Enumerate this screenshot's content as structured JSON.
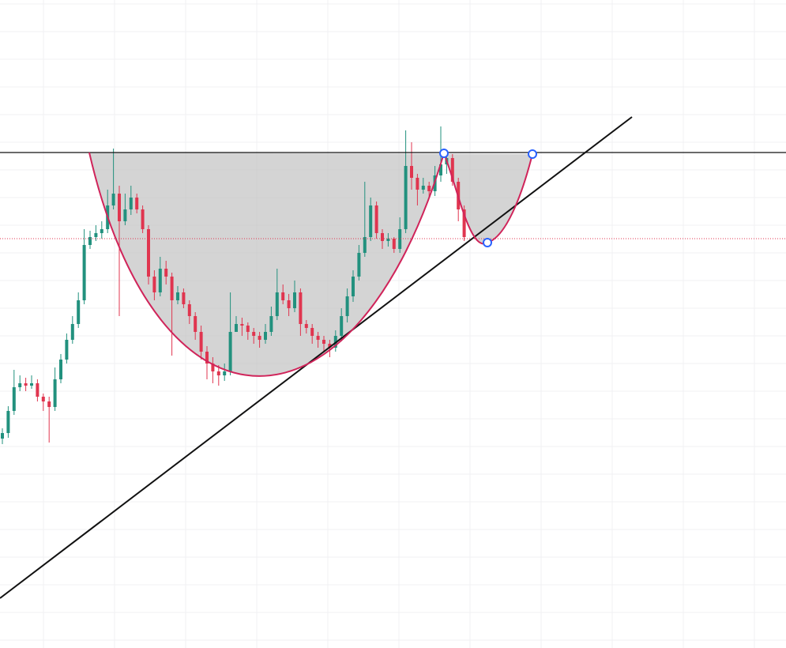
{
  "chart_data": {
    "type": "candlestick",
    "up_color": "#22917e",
    "down_color": "#e0354f",
    "ylim": [
      0,
      820
    ],
    "open": [
      265,
      272,
      300,
      330,
      335,
      332,
      335,
      318,
      312,
      305,
      340,
      365,
      390,
      410,
      440,
      510,
      520,
      525,
      530,
      560,
      575,
      540,
      555,
      570,
      555,
      530,
      470,
      450,
      480,
      470,
      440,
      450,
      435,
      420,
      400,
      375,
      360,
      350,
      345,
      350,
      400,
      410,
      408,
      400,
      395,
      390,
      400,
      420,
      450,
      440,
      430,
      450,
      410,
      405,
      395,
      390,
      385,
      380,
      395,
      420,
      445,
      470,
      500,
      520,
      560,
      525,
      515,
      518,
      505,
      530,
      610,
      595,
      580,
      585,
      578,
      598,
      612,
      620,
      590,
      555
    ],
    "high": [
      278,
      306,
      352,
      345,
      342,
      345,
      340,
      322,
      318,
      355,
      372,
      398,
      420,
      450,
      530,
      528,
      535,
      540,
      580,
      632,
      585,
      575,
      585,
      575,
      560,
      535,
      478,
      495,
      490,
      475,
      458,
      455,
      440,
      425,
      408,
      382,
      368,
      358,
      360,
      450,
      420,
      418,
      412,
      405,
      400,
      410,
      432,
      480,
      460,
      448,
      465,
      455,
      415,
      410,
      400,
      395,
      390,
      402,
      430,
      455,
      478,
      510,
      590,
      570,
      565,
      530,
      525,
      520,
      545,
      655,
      640,
      600,
      595,
      590,
      610,
      660,
      630,
      625,
      595,
      560
    ],
    "low": [
      258,
      266,
      295,
      325,
      325,
      328,
      312,
      300,
      260,
      300,
      335,
      360,
      385,
      405,
      435,
      505,
      515,
      518,
      525,
      555,
      420,
      535,
      548,
      550,
      525,
      460,
      440,
      445,
      460,
      370,
      435,
      430,
      410,
      390,
      365,
      340,
      335,
      332,
      338,
      345,
      400,
      395,
      390,
      385,
      380,
      385,
      395,
      415,
      435,
      420,
      425,
      395,
      398,
      385,
      380,
      375,
      368,
      375,
      388,
      412,
      438,
      465,
      495,
      515,
      518,
      505,
      508,
      500,
      500,
      525,
      580,
      560,
      575,
      570,
      572,
      590,
      600,
      585,
      540,
      515
    ],
    "close": [
      272,
      300,
      330,
      335,
      332,
      335,
      318,
      312,
      305,
      340,
      365,
      390,
      410,
      440,
      510,
      520,
      525,
      530,
      560,
      575,
      540,
      555,
      570,
      555,
      530,
      470,
      450,
      480,
      470,
      440,
      450,
      435,
      420,
      400,
      375,
      360,
      350,
      345,
      350,
      400,
      410,
      408,
      400,
      395,
      390,
      400,
      420,
      450,
      440,
      430,
      450,
      410,
      405,
      395,
      390,
      385,
      380,
      395,
      420,
      445,
      470,
      500,
      520,
      560,
      525,
      515,
      518,
      505,
      530,
      610,
      595,
      580,
      585,
      578,
      598,
      612,
      620,
      590,
      555,
      520
    ]
  }
}
